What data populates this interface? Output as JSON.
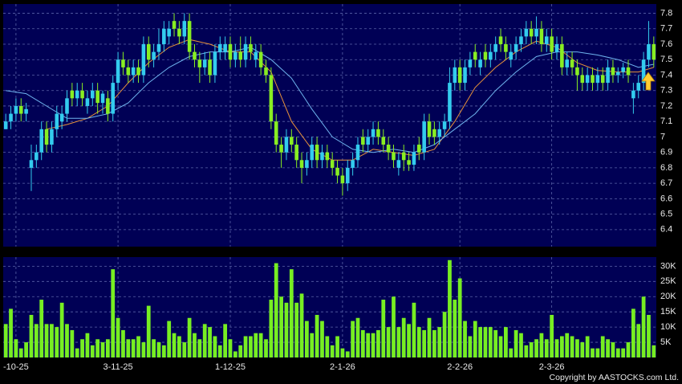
{
  "chart_data": [
    {
      "type": "candlestick",
      "up_color": "#33ccee",
      "down_color": "#88ee22",
      "xlim": [
        -0.5,
        127.5
      ],
      "ylim": [
        6.29,
        7.86
      ],
      "yticks": [
        6.4,
        6.5,
        6.6,
        6.7,
        6.8,
        6.9,
        7,
        7.1,
        7.2,
        7.3,
        7.4,
        7.5,
        7.6,
        7.7,
        7.8
      ],
      "grid": true,
      "open": [
        7.05,
        7.1,
        7.15,
        7.2,
        7.15,
        6.8,
        6.85,
        6.9,
        7.05,
        6.95,
        7.05,
        7.1,
        7.15,
        7.3,
        7.25,
        7.3,
        7.2,
        7.25,
        7.3,
        7.22,
        7.25,
        7.15,
        7.35,
        7.5,
        7.45,
        7.4,
        7.45,
        7.4,
        7.6,
        7.5,
        7.55,
        7.6,
        7.65,
        7.75,
        7.7,
        7.65,
        7.75,
        7.55,
        7.5,
        7.45,
        7.5,
        7.4,
        7.55,
        7.55,
        7.6,
        7.5,
        7.55,
        7.5,
        7.6,
        7.5,
        7.55,
        7.45,
        7.4,
        7.1,
        6.95,
        6.9,
        7,
        6.95,
        6.85,
        6.8,
        6.85,
        6.95,
        6.85,
        6.9,
        6.85,
        6.8,
        6.75,
        6.7,
        6.8,
        6.85,
        7,
        6.95,
        7,
        7.05,
        7,
        6.95,
        6.9,
        6.8,
        6.9,
        6.85,
        6.82,
        6.95,
        6.9,
        7.1,
        7.05,
        7,
        7.05,
        7.1,
        7.35,
        7.45,
        7.35,
        7.45,
        7.55,
        7.45,
        7.55,
        7.5,
        7.55,
        7.65,
        7.6,
        7.5,
        7.55,
        7.6,
        7.65,
        7.7,
        7.65,
        7.7,
        7.6,
        7.65,
        7.55,
        7.6,
        7.45,
        7.5,
        7.45,
        7.4,
        7.35,
        7.4,
        7.35,
        7.4,
        7.35,
        7.45,
        7.4,
        7.42,
        7.45,
        7.25,
        7.3,
        7.35,
        7.5,
        7.6
      ],
      "high": [
        7.15,
        7.2,
        7.25,
        7.25,
        7.22,
        6.95,
        6.95,
        7.1,
        7.1,
        7.1,
        7.2,
        7.2,
        7.3,
        7.35,
        7.35,
        7.35,
        7.3,
        7.35,
        7.35,
        7.3,
        7.3,
        7.4,
        7.55,
        7.55,
        7.5,
        7.5,
        7.5,
        7.65,
        7.65,
        7.6,
        7.7,
        7.75,
        7.75,
        7.8,
        7.75,
        7.8,
        7.8,
        7.6,
        7.55,
        7.55,
        7.55,
        7.6,
        7.65,
        7.65,
        7.65,
        7.6,
        7.65,
        7.65,
        7.65,
        7.6,
        7.6,
        7.5,
        7.45,
        7.15,
        7,
        7.05,
        7.05,
        7,
        6.9,
        6.9,
        7,
        7,
        6.95,
        6.95,
        6.9,
        6.85,
        6.8,
        6.85,
        6.9,
        7,
        7.05,
        7.05,
        7.1,
        7.1,
        7.05,
        7,
        6.95,
        6.9,
        6.95,
        6.9,
        6.95,
        7,
        7.15,
        7.15,
        7.1,
        7.1,
        7.15,
        7.45,
        7.5,
        7.5,
        7.5,
        7.55,
        7.6,
        7.55,
        7.6,
        7.6,
        7.65,
        7.7,
        7.65,
        7.6,
        7.65,
        7.7,
        7.75,
        7.75,
        7.78,
        7.75,
        7.7,
        7.7,
        7.65,
        7.65,
        7.55,
        7.55,
        7.5,
        7.45,
        7.45,
        7.45,
        7.45,
        7.45,
        7.5,
        7.5,
        7.45,
        7.48,
        7.5,
        7.35,
        7.4,
        7.55,
        7.75,
        7.65
      ],
      "low": [
        7.05,
        7.05,
        7.1,
        7.1,
        7.1,
        6.65,
        6.8,
        6.85,
        6.9,
        6.9,
        7,
        7.05,
        7.1,
        7.2,
        7.2,
        7.2,
        7.15,
        7.2,
        7.15,
        7.15,
        7.1,
        7.1,
        7.3,
        7.4,
        7.35,
        7.35,
        7.35,
        7.35,
        7.45,
        7.45,
        7.5,
        7.55,
        7.6,
        7.65,
        7.6,
        7.6,
        7.5,
        7.45,
        7.35,
        7.4,
        7.35,
        7.35,
        7.5,
        7.5,
        7.45,
        7.45,
        7.45,
        7.45,
        7.5,
        7.45,
        7.4,
        7.35,
        7.05,
        6.9,
        6.8,
        6.85,
        6.9,
        6.8,
        6.7,
        6.75,
        6.8,
        6.8,
        6.8,
        6.8,
        6.75,
        6.7,
        6.62,
        6.65,
        6.75,
        6.8,
        6.9,
        6.9,
        6.95,
        6.95,
        6.9,
        6.85,
        6.8,
        6.75,
        6.78,
        6.78,
        6.78,
        6.85,
        6.85,
        6.95,
        6.95,
        6.95,
        7,
        7.05,
        7.3,
        7.3,
        7.3,
        7.4,
        7.45,
        7.4,
        7.45,
        7.45,
        7.5,
        7.55,
        7.5,
        7.45,
        7.5,
        7.55,
        7.6,
        7.6,
        7.6,
        7.55,
        7.55,
        7.5,
        7.5,
        7.4,
        7.4,
        7.4,
        7.3,
        7.3,
        7.3,
        7.3,
        7.3,
        7.3,
        7.3,
        7.35,
        7.35,
        7.38,
        7.35,
        7.15,
        7.25,
        7.3,
        7.45,
        7.45
      ],
      "close": [
        7.1,
        7.15,
        7.2,
        7.15,
        7.18,
        6.85,
        6.9,
        7.05,
        6.95,
        7.05,
        7.15,
        7.15,
        7.25,
        7.25,
        7.3,
        7.25,
        7.25,
        7.3,
        7.22,
        7.28,
        7.15,
        7.35,
        7.5,
        7.45,
        7.4,
        7.45,
        7.4,
        7.6,
        7.5,
        7.55,
        7.6,
        7.7,
        7.7,
        7.7,
        7.65,
        7.75,
        7.55,
        7.5,
        7.45,
        7.5,
        7.4,
        7.55,
        7.6,
        7.6,
        7.5,
        7.55,
        7.5,
        7.6,
        7.55,
        7.55,
        7.45,
        7.4,
        7.1,
        6.95,
        6.9,
        7,
        6.95,
        6.85,
        6.8,
        6.85,
        6.95,
        6.85,
        6.9,
        6.85,
        6.8,
        6.75,
        6.7,
        6.8,
        6.85,
        6.95,
        6.95,
        7,
        7.05,
        7,
        6.95,
        6.9,
        6.85,
        6.85,
        6.85,
        6.82,
        6.9,
        6.9,
        7.1,
        7,
        7,
        7.05,
        7.1,
        7.35,
        7.45,
        7.35,
        7.45,
        7.5,
        7.5,
        7.5,
        7.5,
        7.55,
        7.6,
        7.6,
        7.55,
        7.55,
        7.6,
        7.65,
        7.7,
        7.65,
        7.7,
        7.6,
        7.65,
        7.55,
        7.6,
        7.45,
        7.5,
        7.45,
        7.4,
        7.35,
        7.4,
        7.35,
        7.4,
        7.35,
        7.45,
        7.4,
        7.42,
        7.45,
        7.4,
        7.3,
        7.35,
        7.5,
        7.6,
        7.5
      ],
      "lines": [
        {
          "color": "#e8923a",
          "x": [
            8,
            12,
            16,
            20,
            24,
            28,
            32,
            36,
            40,
            44,
            48,
            52,
            56,
            60,
            64,
            68,
            72,
            76,
            80,
            84,
            88,
            92,
            96,
            100,
            104,
            108,
            112,
            116,
            120,
            124,
            127
          ],
          "values": [
            7.05,
            7.08,
            7.12,
            7.2,
            7.35,
            7.48,
            7.58,
            7.63,
            7.6,
            7.55,
            7.55,
            7.42,
            7.1,
            6.92,
            6.85,
            6.85,
            6.92,
            6.9,
            6.88,
            6.92,
            7.1,
            7.32,
            7.45,
            7.55,
            7.62,
            7.58,
            7.48,
            7.43,
            7.42,
            7.42,
            7.45
          ]
        },
        {
          "color": "#6fb4ee",
          "x": [
            0,
            4,
            8,
            12,
            16,
            20,
            24,
            28,
            32,
            36,
            40,
            44,
            48,
            52,
            56,
            60,
            64,
            68,
            72,
            76,
            80,
            84,
            88,
            92,
            96,
            100,
            104,
            108,
            112,
            116,
            120,
            124,
            127
          ],
          "values": [
            7.3,
            7.28,
            7.2,
            7.12,
            7.12,
            7.15,
            7.22,
            7.35,
            7.45,
            7.52,
            7.55,
            7.55,
            7.58,
            7.5,
            7.38,
            7.18,
            7,
            6.92,
            6.9,
            6.92,
            6.9,
            6.95,
            7.05,
            7.15,
            7.3,
            7.42,
            7.52,
            7.55,
            7.55,
            7.53,
            7.5,
            7.45,
            7.47
          ]
        }
      ]
    },
    {
      "type": "bar",
      "color": "#77ee22",
      "xlim": [
        -0.5,
        127.5
      ],
      "ylim": [
        0,
        33000
      ],
      "yticks": [
        {
          "value": 5000,
          "label": "5K"
        },
        {
          "value": 10000,
          "label": "10K"
        },
        {
          "value": 15000,
          "label": "15K"
        },
        {
          "value": 20000,
          "label": "20K"
        },
        {
          "value": 25000,
          "label": "25K"
        },
        {
          "value": 30000,
          "label": "30K"
        }
      ],
      "xticks": [
        {
          "value": 2,
          "label": "-10-25"
        },
        {
          "value": 22,
          "label": "3-11-25"
        },
        {
          "value": 44,
          "label": "1-12-25"
        },
        {
          "value": 66,
          "label": "2-1-26"
        },
        {
          "value": 89,
          "label": "2-2-26"
        },
        {
          "value": 107,
          "label": "2-3-26"
        }
      ],
      "grid": true,
      "values": [
        11000,
        16000,
        6000,
        3000,
        5000,
        14000,
        11000,
        19000,
        11000,
        11000,
        10000,
        18000,
        11000,
        9000,
        3000,
        6000,
        8000,
        4000,
        6000,
        5000,
        6000,
        29000,
        13000,
        9000,
        6000,
        6000,
        7000,
        5000,
        17000,
        6000,
        5000,
        4000,
        12000,
        8000,
        7000,
        5000,
        13000,
        8000,
        6000,
        11000,
        10000,
        7000,
        4000,
        11000,
        6000,
        2000,
        4000,
        7000,
        7000,
        8000,
        8000,
        6000,
        19000,
        31000,
        20000,
        18000,
        29000,
        18000,
        21000,
        12000,
        8000,
        14000,
        12000,
        7000,
        4000,
        7000,
        3000,
        2000,
        12000,
        13000,
        9000,
        8000,
        8000,
        9000,
        19000,
        10000,
        20000,
        10000,
        13000,
        11000,
        18000,
        10000,
        9000,
        13000,
        9000,
        10000,
        15000,
        32000,
        19000,
        26000,
        12000,
        7000,
        12000,
        10000,
        10000,
        10000,
        9000,
        7000,
        10000,
        3000,
        9000,
        8000,
        4000,
        5000,
        6000,
        8000,
        6000,
        14000,
        6000,
        7000,
        8000,
        7000,
        6000,
        5000,
        7000,
        3000,
        3000,
        7000,
        6000,
        5000,
        3000,
        3000,
        5000,
        16000,
        11000,
        20000,
        14000,
        4000
      ]
    }
  ],
  "footer": "Copyright by AASTOCKS.com Ltd."
}
